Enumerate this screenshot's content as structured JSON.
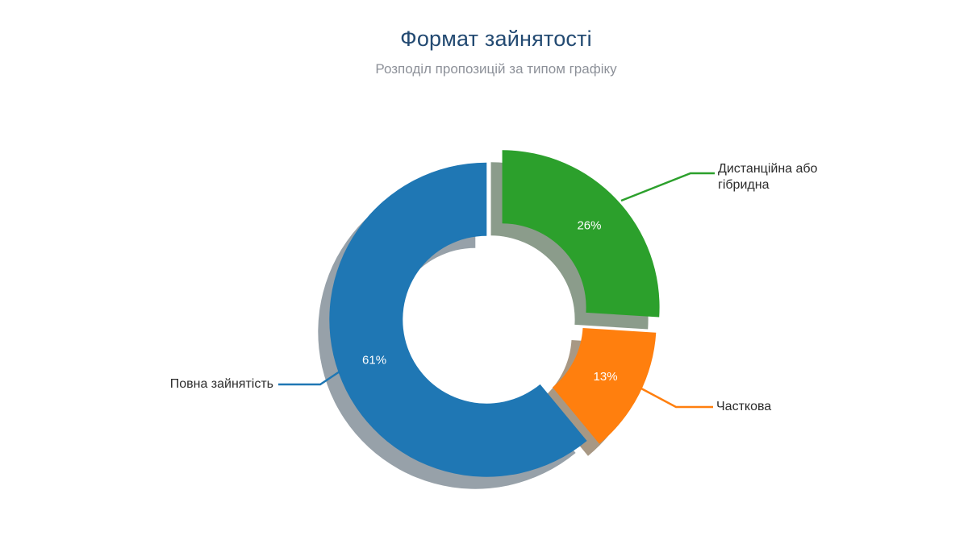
{
  "header": {
    "title": "Формат зайнятості",
    "subtitle": "Розподіл пропозицій за типом графіку"
  },
  "chart_data": {
    "type": "pie",
    "donut": true,
    "title": "Формат зайнятості",
    "subtitle": "Розподіл пропозицій за типом графіку",
    "units": "%",
    "start_angle": "top, clockwise",
    "legend_position": "callout-labels",
    "shadow": true,
    "segments": [
      {
        "label": "Дистанційна або гібридна",
        "value": 26,
        "pct_label": "26%",
        "color": "#2ca02c",
        "shadow_color": "#8b9c8b",
        "exploded": true
      },
      {
        "label": "Часткова",
        "value": 13,
        "pct_label": "13%",
        "color": "#ff7f0e",
        "shadow_color": "#a89884",
        "exploded": true
      },
      {
        "label": "Повна зайнятість",
        "value": 61,
        "pct_label": "61%",
        "color": "#1f77b4",
        "shadow_color": "#97a1a9",
        "exploded": false
      }
    ],
    "colors": {
      "title": "#234a72",
      "subtitle": "#8d9199",
      "label_text": "#2b2b2b",
      "pct_text": "#ffffff",
      "background": "#ffffff"
    }
  }
}
